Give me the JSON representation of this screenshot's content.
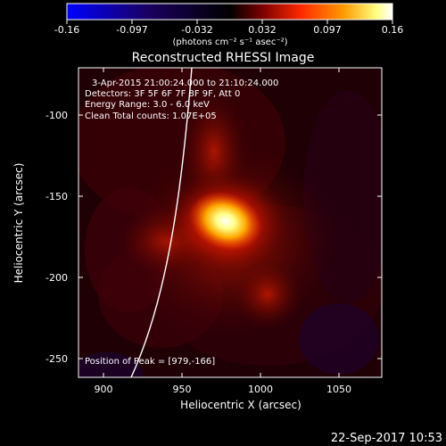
{
  "colorbar": {
    "tick_labels": [
      "-0.16",
      "-0.097",
      "-0.032",
      "0.032",
      "0.097",
      "0.16"
    ],
    "unit": "(photons cm⁻² s⁻¹ asec⁻²)",
    "colors": [
      "#0000ff",
      "#000000",
      "#8b0000",
      "#ff2a00",
      "#ff8c00",
      "#ffff66",
      "#ffffff"
    ]
  },
  "plot": {
    "title": "Reconstructed RHESSI Image",
    "xlabel": "Heliocentric X (arcsec)",
    "ylabel": "Heliocentric Y (arcsec)",
    "x_ticks": [
      "900",
      "950",
      "1000",
      "1050"
    ],
    "y_ticks": [
      "-100",
      "-150",
      "-200",
      "-250"
    ],
    "info_lines": [
      "3-Apr-2015 21:00:24.000 to 21:10:24.000",
      "Detectors: 3F 5F 6F 7F 8F 9F, Att 0",
      "Energy Range: 3.0 - 6.0 keV",
      "Clean     Total counts: 1.07E+05"
    ],
    "peak_text": "Position of Peak = [979,-166]",
    "peak": {
      "x": 979,
      "y": -166
    }
  },
  "footer": {
    "timestamp": "22-Sep-2017 10:53"
  }
}
